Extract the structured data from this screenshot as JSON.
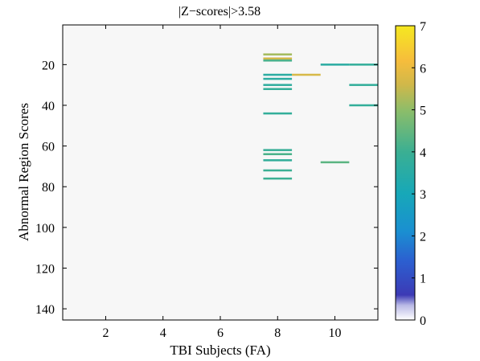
{
  "chart_data": {
    "type": "heatmap",
    "title": "|Z−scores|>3.58",
    "xlabel": "TBI Subjects (FA)",
    "ylabel": "Abnormal Region Scores",
    "xlim": [
      0.5,
      11.5
    ],
    "ylim": [
      145,
      1
    ],
    "xticks": [
      2,
      4,
      6,
      8,
      10
    ],
    "yticks": [
      20,
      40,
      60,
      80,
      100,
      120,
      140
    ],
    "colorbar": {
      "min": 0,
      "max": 7,
      "ticks": [
        0,
        1,
        2,
        3,
        4,
        5,
        6,
        7
      ]
    },
    "background_value": 0,
    "cells": [
      {
        "x": 8,
        "y": 15,
        "value": 5.2
      },
      {
        "x": 8,
        "y": 17,
        "value": 5.6
      },
      {
        "x": 8,
        "y": 18,
        "value": 4.2
      },
      {
        "x": 8,
        "y": 25,
        "value": 3.6
      },
      {
        "x": 8,
        "y": 27,
        "value": 3.6
      },
      {
        "x": 8,
        "y": 30,
        "value": 3.7
      },
      {
        "x": 8,
        "y": 32,
        "value": 3.8
      },
      {
        "x": 8,
        "y": 44,
        "value": 3.8
      },
      {
        "x": 8,
        "y": 62,
        "value": 3.9
      },
      {
        "x": 8,
        "y": 64,
        "value": 4.2
      },
      {
        "x": 8,
        "y": 67,
        "value": 3.8
      },
      {
        "x": 8,
        "y": 72,
        "value": 4.0
      },
      {
        "x": 8,
        "y": 76,
        "value": 4.0
      },
      {
        "x": 9,
        "y": 25,
        "value": 5.7
      },
      {
        "x": 10,
        "y": 20,
        "value": 3.6
      },
      {
        "x": 10,
        "y": 68,
        "value": 4.4
      },
      {
        "x": 11,
        "y": 20,
        "value": 3.8
      },
      {
        "x": 11,
        "y": 30,
        "value": 3.8
      },
      {
        "x": 11,
        "y": 40,
        "value": 3.8
      }
    ]
  }
}
